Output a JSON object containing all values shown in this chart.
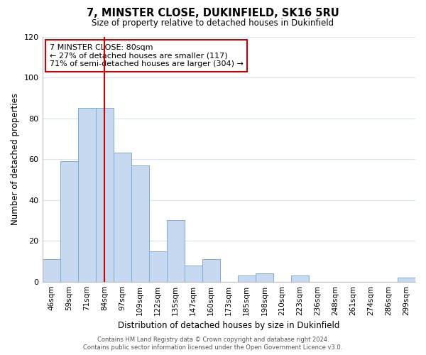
{
  "title": "7, MINSTER CLOSE, DUKINFIELD, SK16 5RU",
  "subtitle": "Size of property relative to detached houses in Dukinfield",
  "xlabel": "Distribution of detached houses by size in Dukinfield",
  "ylabel": "Number of detached properties",
  "bar_labels": [
    "46sqm",
    "59sqm",
    "71sqm",
    "84sqm",
    "97sqm",
    "109sqm",
    "122sqm",
    "135sqm",
    "147sqm",
    "160sqm",
    "173sqm",
    "185sqm",
    "198sqm",
    "210sqm",
    "223sqm",
    "236sqm",
    "248sqm",
    "261sqm",
    "274sqm",
    "286sqm",
    "299sqm"
  ],
  "bar_values": [
    11,
    59,
    85,
    85,
    63,
    57,
    15,
    30,
    8,
    11,
    0,
    3,
    4,
    0,
    3,
    0,
    0,
    0,
    0,
    0,
    2
  ],
  "bar_color": "#c6d9f0",
  "bar_edge_color": "#7bafd4",
  "ylim": [
    0,
    120
  ],
  "yticks": [
    0,
    20,
    40,
    60,
    80,
    100,
    120
  ],
  "vline_x": 3,
  "vline_color": "#cc0000",
  "annotation_title": "7 MINSTER CLOSE: 80sqm",
  "annotation_line1": "← 27% of detached houses are smaller (117)",
  "annotation_line2": "71% of semi-detached houses are larger (304) →",
  "annotation_box_color": "#ffffff",
  "annotation_box_edge": "#cc0000",
  "footnote1": "Contains HM Land Registry data © Crown copyright and database right 2024.",
  "footnote2": "Contains public sector information licensed under the Open Government Licence v3.0.",
  "background_color": "#ffffff",
  "grid_color": "#d8e4f0"
}
